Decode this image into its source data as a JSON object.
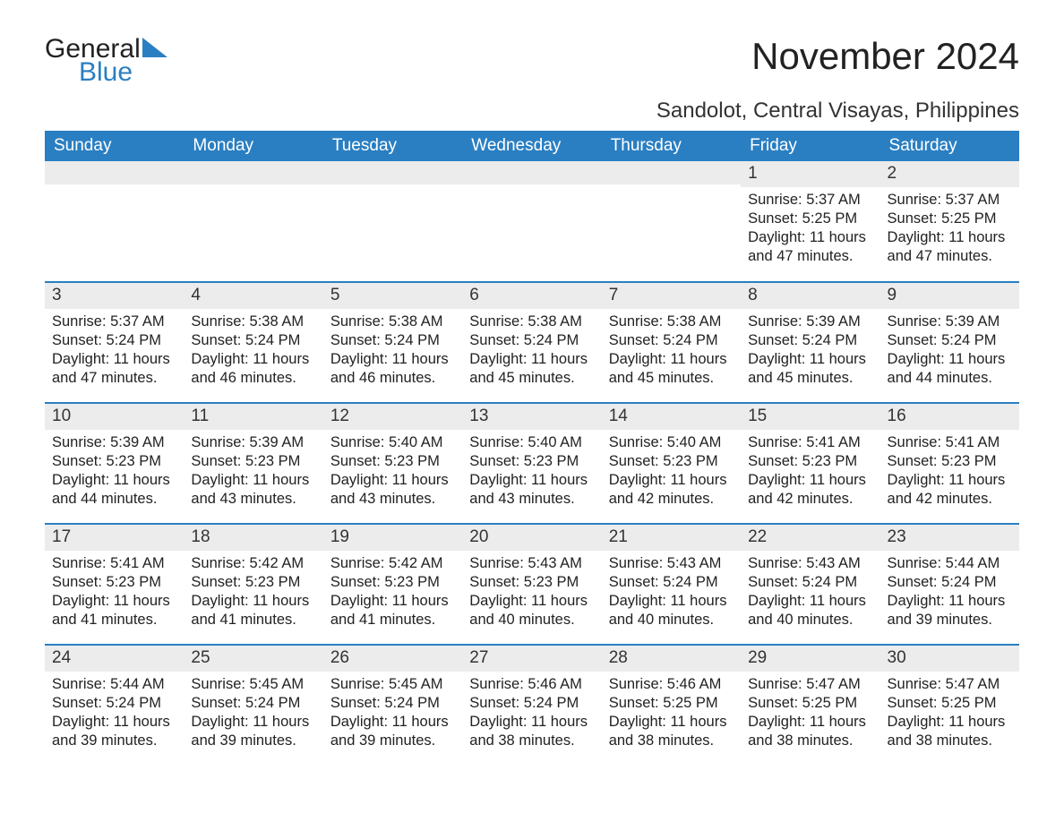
{
  "logo": {
    "word1": "General",
    "word2": "Blue",
    "accent_color": "#2a7fc2"
  },
  "header": {
    "month_title": "November 2024",
    "location": "Sandolot, Central Visayas, Philippines"
  },
  "colors": {
    "header_bg": "#2a7fc2",
    "header_text": "#ffffff",
    "daynum_bg": "#ececec",
    "row_sep": "#2a7fc2",
    "body_text": "#222222",
    "page_bg": "#ffffff"
  },
  "typography": {
    "month_title_fontsize": 42,
    "location_fontsize": 24,
    "weekday_fontsize": 19,
    "daynum_fontsize": 19,
    "body_fontsize": 16.5
  },
  "calendar": {
    "weekdays": [
      "Sunday",
      "Monday",
      "Tuesday",
      "Wednesday",
      "Thursday",
      "Friday",
      "Saturday"
    ],
    "first_weekday_index": 5,
    "days": [
      {
        "n": 1,
        "sunrise": "Sunrise: 5:37 AM",
        "sunset": "Sunset: 5:25 PM",
        "daylight": "Daylight: 11 hours and 47 minutes."
      },
      {
        "n": 2,
        "sunrise": "Sunrise: 5:37 AM",
        "sunset": "Sunset: 5:25 PM",
        "daylight": "Daylight: 11 hours and 47 minutes."
      },
      {
        "n": 3,
        "sunrise": "Sunrise: 5:37 AM",
        "sunset": "Sunset: 5:24 PM",
        "daylight": "Daylight: 11 hours and 47 minutes."
      },
      {
        "n": 4,
        "sunrise": "Sunrise: 5:38 AM",
        "sunset": "Sunset: 5:24 PM",
        "daylight": "Daylight: 11 hours and 46 minutes."
      },
      {
        "n": 5,
        "sunrise": "Sunrise: 5:38 AM",
        "sunset": "Sunset: 5:24 PM",
        "daylight": "Daylight: 11 hours and 46 minutes."
      },
      {
        "n": 6,
        "sunrise": "Sunrise: 5:38 AM",
        "sunset": "Sunset: 5:24 PM",
        "daylight": "Daylight: 11 hours and 45 minutes."
      },
      {
        "n": 7,
        "sunrise": "Sunrise: 5:38 AM",
        "sunset": "Sunset: 5:24 PM",
        "daylight": "Daylight: 11 hours and 45 minutes."
      },
      {
        "n": 8,
        "sunrise": "Sunrise: 5:39 AM",
        "sunset": "Sunset: 5:24 PM",
        "daylight": "Daylight: 11 hours and 45 minutes."
      },
      {
        "n": 9,
        "sunrise": "Sunrise: 5:39 AM",
        "sunset": "Sunset: 5:24 PM",
        "daylight": "Daylight: 11 hours and 44 minutes."
      },
      {
        "n": 10,
        "sunrise": "Sunrise: 5:39 AM",
        "sunset": "Sunset: 5:23 PM",
        "daylight": "Daylight: 11 hours and 44 minutes."
      },
      {
        "n": 11,
        "sunrise": "Sunrise: 5:39 AM",
        "sunset": "Sunset: 5:23 PM",
        "daylight": "Daylight: 11 hours and 43 minutes."
      },
      {
        "n": 12,
        "sunrise": "Sunrise: 5:40 AM",
        "sunset": "Sunset: 5:23 PM",
        "daylight": "Daylight: 11 hours and 43 minutes."
      },
      {
        "n": 13,
        "sunrise": "Sunrise: 5:40 AM",
        "sunset": "Sunset: 5:23 PM",
        "daylight": "Daylight: 11 hours and 43 minutes."
      },
      {
        "n": 14,
        "sunrise": "Sunrise: 5:40 AM",
        "sunset": "Sunset: 5:23 PM",
        "daylight": "Daylight: 11 hours and 42 minutes."
      },
      {
        "n": 15,
        "sunrise": "Sunrise: 5:41 AM",
        "sunset": "Sunset: 5:23 PM",
        "daylight": "Daylight: 11 hours and 42 minutes."
      },
      {
        "n": 16,
        "sunrise": "Sunrise: 5:41 AM",
        "sunset": "Sunset: 5:23 PM",
        "daylight": "Daylight: 11 hours and 42 minutes."
      },
      {
        "n": 17,
        "sunrise": "Sunrise: 5:41 AM",
        "sunset": "Sunset: 5:23 PM",
        "daylight": "Daylight: 11 hours and 41 minutes."
      },
      {
        "n": 18,
        "sunrise": "Sunrise: 5:42 AM",
        "sunset": "Sunset: 5:23 PM",
        "daylight": "Daylight: 11 hours and 41 minutes."
      },
      {
        "n": 19,
        "sunrise": "Sunrise: 5:42 AM",
        "sunset": "Sunset: 5:23 PM",
        "daylight": "Daylight: 11 hours and 41 minutes."
      },
      {
        "n": 20,
        "sunrise": "Sunrise: 5:43 AM",
        "sunset": "Sunset: 5:23 PM",
        "daylight": "Daylight: 11 hours and 40 minutes."
      },
      {
        "n": 21,
        "sunrise": "Sunrise: 5:43 AM",
        "sunset": "Sunset: 5:24 PM",
        "daylight": "Daylight: 11 hours and 40 minutes."
      },
      {
        "n": 22,
        "sunrise": "Sunrise: 5:43 AM",
        "sunset": "Sunset: 5:24 PM",
        "daylight": "Daylight: 11 hours and 40 minutes."
      },
      {
        "n": 23,
        "sunrise": "Sunrise: 5:44 AM",
        "sunset": "Sunset: 5:24 PM",
        "daylight": "Daylight: 11 hours and 39 minutes."
      },
      {
        "n": 24,
        "sunrise": "Sunrise: 5:44 AM",
        "sunset": "Sunset: 5:24 PM",
        "daylight": "Daylight: 11 hours and 39 minutes."
      },
      {
        "n": 25,
        "sunrise": "Sunrise: 5:45 AM",
        "sunset": "Sunset: 5:24 PM",
        "daylight": "Daylight: 11 hours and 39 minutes."
      },
      {
        "n": 26,
        "sunrise": "Sunrise: 5:45 AM",
        "sunset": "Sunset: 5:24 PM",
        "daylight": "Daylight: 11 hours and 39 minutes."
      },
      {
        "n": 27,
        "sunrise": "Sunrise: 5:46 AM",
        "sunset": "Sunset: 5:24 PM",
        "daylight": "Daylight: 11 hours and 38 minutes."
      },
      {
        "n": 28,
        "sunrise": "Sunrise: 5:46 AM",
        "sunset": "Sunset: 5:25 PM",
        "daylight": "Daylight: 11 hours and 38 minutes."
      },
      {
        "n": 29,
        "sunrise": "Sunrise: 5:47 AM",
        "sunset": "Sunset: 5:25 PM",
        "daylight": "Daylight: 11 hours and 38 minutes."
      },
      {
        "n": 30,
        "sunrise": "Sunrise: 5:47 AM",
        "sunset": "Sunset: 5:25 PM",
        "daylight": "Daylight: 11 hours and 38 minutes."
      }
    ]
  }
}
